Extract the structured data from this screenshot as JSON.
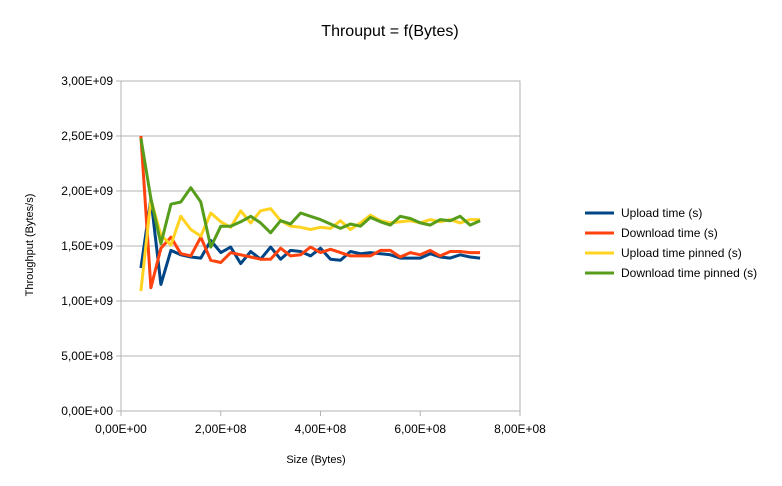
{
  "chart_data": {
    "type": "line",
    "title": "Throuput = f(Bytes)",
    "xlabel": "Size (Bytes)",
    "ylabel": "Throughput (Bytes/s)",
    "xlim": [
      0,
      800000000
    ],
    "ylim": [
      0,
      3000000000
    ],
    "xticks": [
      0,
      200000000,
      400000000,
      600000000,
      800000000
    ],
    "yticks": [
      0,
      500000000,
      1000000000,
      1500000000,
      2000000000,
      2500000000,
      3000000000
    ],
    "xtick_labels": [
      "0,00E+00",
      "2,00E+08",
      "4,00E+08",
      "6,00E+08",
      "8,00E+08"
    ],
    "ytick_labels": [
      "0,00E+00",
      "5,00E+08",
      "1,00E+09",
      "1,50E+09",
      "2,00E+09",
      "2,50E+09",
      "3,00E+09"
    ],
    "grid": "horizontal",
    "legend_position": "right",
    "x": [
      40000000,
      60000000,
      80000000,
      100000000,
      120000000,
      140000000,
      160000000,
      180000000,
      200000000,
      220000000,
      240000000,
      260000000,
      280000000,
      300000000,
      320000000,
      340000000,
      360000000,
      380000000,
      400000000,
      420000000,
      440000000,
      460000000,
      480000000,
      500000000,
      520000000,
      540000000,
      560000000,
      580000000,
      600000000,
      620000000,
      640000000,
      660000000,
      680000000,
      700000000,
      720000000
    ],
    "series": [
      {
        "name": "Upload time (s)",
        "color": "#004586",
        "values": [
          1300000000,
          1930000000,
          1150000000,
          1460000000,
          1420000000,
          1400000000,
          1390000000,
          1550000000,
          1440000000,
          1490000000,
          1340000000,
          1450000000,
          1380000000,
          1490000000,
          1380000000,
          1460000000,
          1450000000,
          1410000000,
          1480000000,
          1380000000,
          1370000000,
          1450000000,
          1430000000,
          1440000000,
          1430000000,
          1420000000,
          1390000000,
          1390000000,
          1390000000,
          1430000000,
          1400000000,
          1390000000,
          1420000000,
          1400000000,
          1390000000
        ]
      },
      {
        "name": "Download time (s)",
        "color": "#ff420e",
        "values": [
          2500000000,
          1120000000,
          1480000000,
          1580000000,
          1430000000,
          1410000000,
          1580000000,
          1370000000,
          1350000000,
          1440000000,
          1420000000,
          1400000000,
          1380000000,
          1380000000,
          1480000000,
          1410000000,
          1420000000,
          1490000000,
          1440000000,
          1470000000,
          1440000000,
          1410000000,
          1410000000,
          1410000000,
          1460000000,
          1460000000,
          1400000000,
          1440000000,
          1420000000,
          1460000000,
          1410000000,
          1450000000,
          1450000000,
          1440000000,
          1440000000
        ]
      },
      {
        "name": "Upload time pinned (s)",
        "color": "#ffd320",
        "values": [
          1090000000,
          1920000000,
          1600000000,
          1510000000,
          1770000000,
          1650000000,
          1590000000,
          1800000000,
          1720000000,
          1670000000,
          1820000000,
          1710000000,
          1820000000,
          1840000000,
          1730000000,
          1680000000,
          1670000000,
          1650000000,
          1670000000,
          1660000000,
          1730000000,
          1650000000,
          1710000000,
          1780000000,
          1730000000,
          1710000000,
          1720000000,
          1730000000,
          1710000000,
          1740000000,
          1720000000,
          1740000000,
          1710000000,
          1740000000,
          1740000000
        ]
      },
      {
        "name": "Download time pinned (s)",
        "color": "#579d1c",
        "values": [
          2480000000,
          1930000000,
          1520000000,
          1880000000,
          1900000000,
          2030000000,
          1900000000,
          1490000000,
          1680000000,
          1680000000,
          1720000000,
          1770000000,
          1710000000,
          1620000000,
          1730000000,
          1700000000,
          1800000000,
          1770000000,
          1740000000,
          1700000000,
          1660000000,
          1700000000,
          1680000000,
          1760000000,
          1720000000,
          1690000000,
          1770000000,
          1750000000,
          1710000000,
          1690000000,
          1740000000,
          1730000000,
          1770000000,
          1690000000,
          1730000000
        ]
      }
    ]
  }
}
